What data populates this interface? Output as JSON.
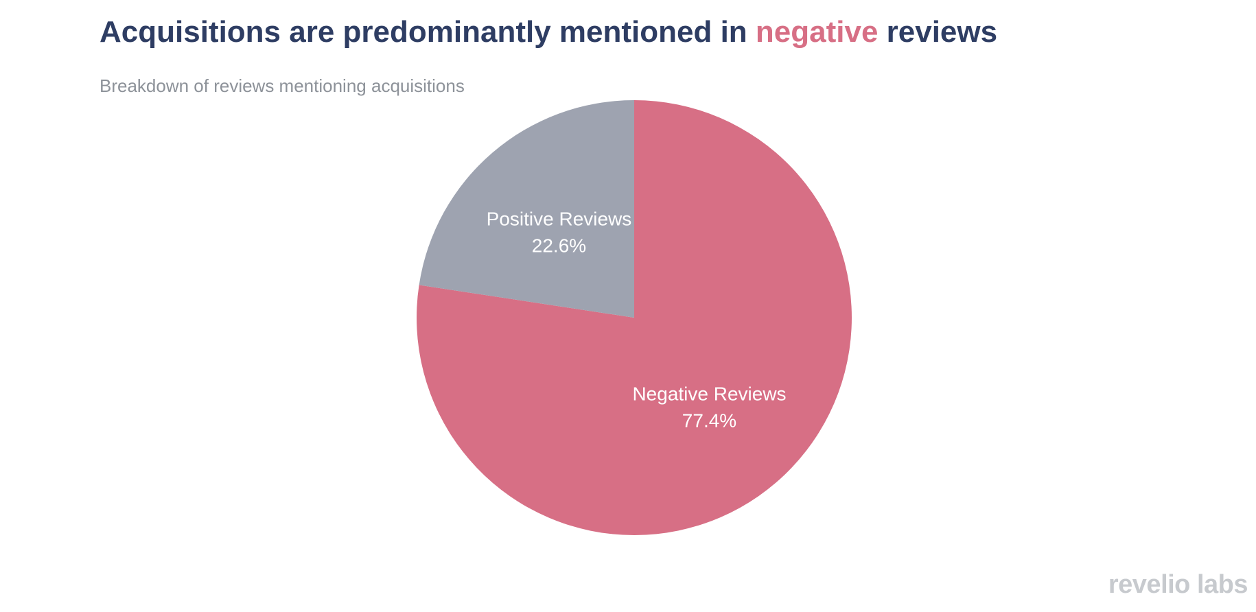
{
  "title": {
    "before": "Acquisitions are predominantly mentioned in ",
    "highlight": "negative",
    "after": " reviews"
  },
  "subtitle": "Breakdown of reviews mentioning acquisitions",
  "logo": "revelio labs",
  "colors": {
    "title": "#2e3d63",
    "highlight": "#d76f85",
    "negative": "#d76f85",
    "positive": "#9ea3b0",
    "subtitle": "#8d9299"
  },
  "chart_data": {
    "type": "pie",
    "title": "Acquisitions are predominantly mentioned in negative reviews",
    "subtitle": "Breakdown of reviews mentioning acquisitions",
    "slices": [
      {
        "label": "Negative Reviews",
        "value": 77.4,
        "display": "77.4%",
        "color": "#d76f85"
      },
      {
        "label": "Positive Reviews",
        "value": 22.6,
        "display": "22.6%",
        "color": "#9ea3b0"
      }
    ],
    "start_angle": "12 o'clock",
    "direction": "clockwise",
    "legend": "none (labels inside slices)"
  }
}
